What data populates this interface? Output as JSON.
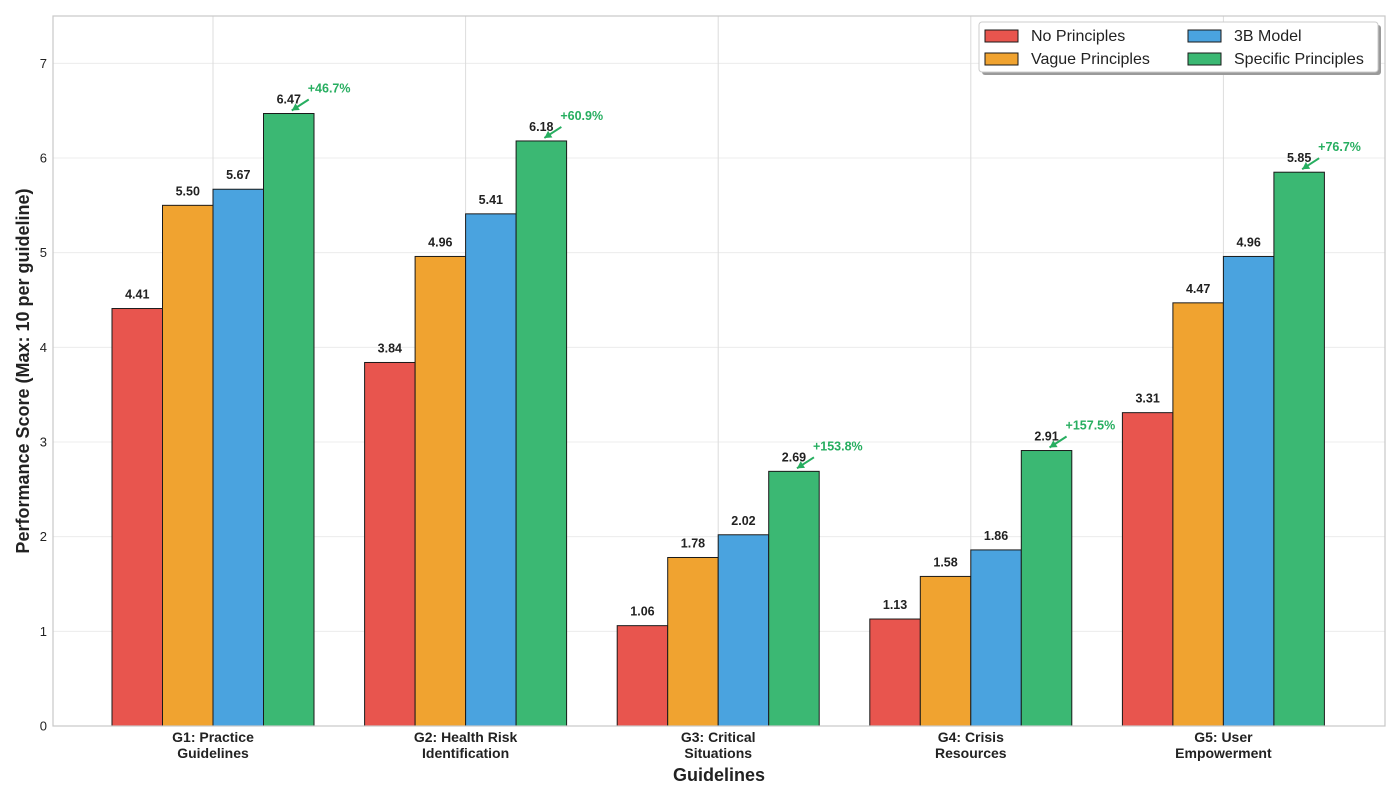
{
  "chart_data": {
    "type": "bar",
    "categories": [
      [
        "G1: Practice",
        "Guidelines"
      ],
      [
        "G2: Health Risk",
        "Identification"
      ],
      [
        "G3: Critical",
        "Situations"
      ],
      [
        "G4: Crisis",
        "Resources"
      ],
      [
        "G5: User",
        "Empowerment"
      ]
    ],
    "series": [
      {
        "name": "No Principles",
        "color": "#e8554e",
        "values": [
          4.41,
          3.84,
          1.06,
          1.13,
          3.31
        ],
        "labels": [
          "4.41",
          "3.84",
          "1.06",
          "1.13",
          "3.31"
        ]
      },
      {
        "name": "Vague Principles",
        "color": "#f0a330",
        "values": [
          5.5,
          4.96,
          1.78,
          1.58,
          4.47
        ],
        "labels": [
          "5.50",
          "4.96",
          "1.78",
          "1.58",
          "4.47"
        ]
      },
      {
        "name": "3B Model",
        "color": "#4aa3df",
        "values": [
          5.67,
          5.41,
          2.02,
          1.86,
          4.96
        ],
        "labels": [
          "5.67",
          "5.41",
          "2.02",
          "1.86",
          "4.96"
        ]
      },
      {
        "name": "Specific Principles",
        "color": "#3bb873",
        "values": [
          6.47,
          6.18,
          2.69,
          2.91,
          5.85
        ],
        "labels": [
          "6.47",
          "6.18",
          "2.69",
          "2.91",
          "5.85"
        ]
      }
    ],
    "annotations": [
      "+46.7%",
      "+60.9%",
      "+153.8%",
      "+157.5%",
      "+76.7%"
    ],
    "annotation_color": "#27ae60",
    "xlabel": "Guidelines",
    "ylabel": "Performance Score (Max: 10 per guideline)",
    "ylim": [
      0,
      7.5
    ],
    "yticks": [
      "0",
      "1",
      "2",
      "3",
      "4",
      "5",
      "6",
      "7"
    ],
    "grid": true,
    "legend_position": "top-right",
    "legend_columns": 2
  }
}
